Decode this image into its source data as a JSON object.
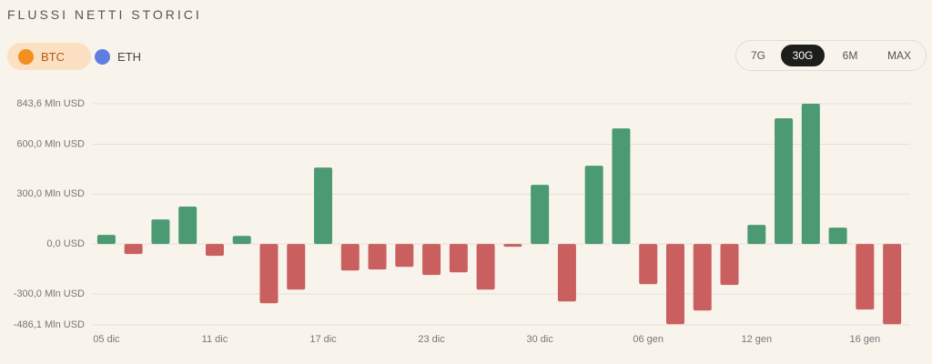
{
  "ui": {
    "title": "FLUSSI NETTI STORICI",
    "assets": [
      "BTC",
      "ETH"
    ],
    "ranges": [
      "7G",
      "30G",
      "6M",
      "MAX"
    ]
  },
  "chart_data": {
    "type": "bar",
    "categories": [
      "05 dic",
      null,
      null,
      null,
      "11 dic",
      null,
      null,
      null,
      "17 dic",
      null,
      null,
      null,
      "23 dic",
      null,
      null,
      null,
      "30 dic",
      null,
      null,
      null,
      "06 gen",
      null,
      null,
      null,
      "12 gen",
      null,
      null,
      null,
      "16 gen",
      null
    ],
    "values": [
      55,
      -60,
      148,
      225,
      -71,
      49,
      -356,
      -274,
      460,
      -159,
      -153,
      -137,
      -186,
      -170,
      -274,
      -16,
      356,
      -345,
      471,
      695,
      -241,
      -482,
      -400,
      -246,
      115,
      756,
      843.6,
      99,
      -394,
      -482
    ],
    "positive_color": "#4b9a73",
    "negative_color": "#c9605f",
    "ylim": [
      -486.1,
      843.6
    ],
    "yticks": [
      {
        "value": -486.1,
        "label": "-486,1 Mln USD"
      },
      {
        "value": -300,
        "label": "-300,0 Mln USD"
      },
      {
        "value": 0,
        "label": "0,0 USD"
      },
      {
        "value": 300,
        "label": "300,0 Mln USD"
      },
      {
        "value": 600,
        "label": "600,0 Mln USD"
      },
      {
        "value": 843.6,
        "label": "843,6 Mln USD"
      }
    ],
    "grid": true
  }
}
